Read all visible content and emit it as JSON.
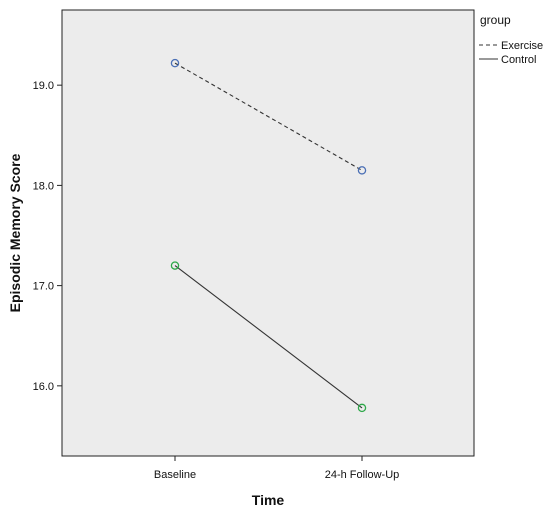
{
  "chart_data": {
    "type": "line",
    "title": "",
    "xlabel": "Time",
    "ylabel": "Episodic Memory Score",
    "categories": [
      "Baseline",
      "24-h Follow-Up"
    ],
    "ylim": [
      15.3,
      19.75
    ],
    "yticks": [
      16.0,
      17.0,
      18.0,
      19.0
    ],
    "ytick_labels": [
      "16.0",
      "17.0",
      "18.0",
      "19.0"
    ],
    "grid": false,
    "legend": {
      "title": "group",
      "placement": "right"
    },
    "series": [
      {
        "name": "Exercise",
        "values": [
          19.22,
          18.15
        ],
        "line_style": "dashed",
        "marker_color": "#4a6fb5"
      },
      {
        "name": "Control",
        "values": [
          17.2,
          15.78
        ],
        "line_style": "solid",
        "marker_color": "#2ea84a"
      }
    ],
    "plot_background": "#ececec"
  }
}
